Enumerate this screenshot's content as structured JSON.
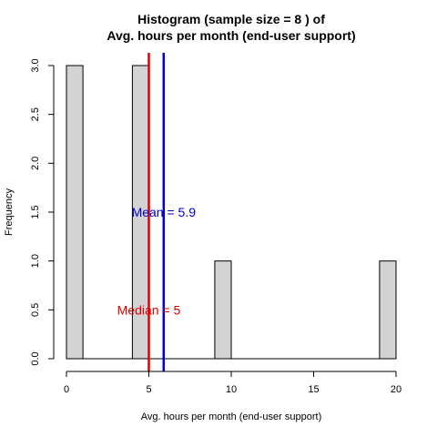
{
  "chart_data": {
    "type": "bar",
    "title_line1": "Histogram (sample size =  8 ) of",
    "title_line2": "Avg. hours per month (end-user support)",
    "xlabel": "Avg. hours per month (end-user support)",
    "ylabel": "Frequency",
    "bins": [
      {
        "start": 0,
        "end": 1,
        "count": 3
      },
      {
        "start": 4,
        "end": 5,
        "count": 3
      },
      {
        "start": 9,
        "end": 10,
        "count": 1
      },
      {
        "start": 19,
        "end": 20,
        "count": 1
      }
    ],
    "xlim": [
      0,
      20
    ],
    "ylim": [
      0,
      3
    ],
    "x_ticks": [
      "0",
      "5",
      "10",
      "15",
      "20"
    ],
    "y_ticks": [
      "0.0",
      "0.5",
      "1.0",
      "1.5",
      "2.0",
      "2.5",
      "3.0"
    ],
    "bar_color": "#d3d3d3",
    "mean": {
      "value": 5.9,
      "label": "Mean = 5.9",
      "color": "#0000cc",
      "label_y": 1.5
    },
    "median": {
      "value": 5,
      "label": "Median = 5",
      "color": "#dd0000",
      "label_y": 0.5
    },
    "grid": false,
    "legend": "none"
  }
}
